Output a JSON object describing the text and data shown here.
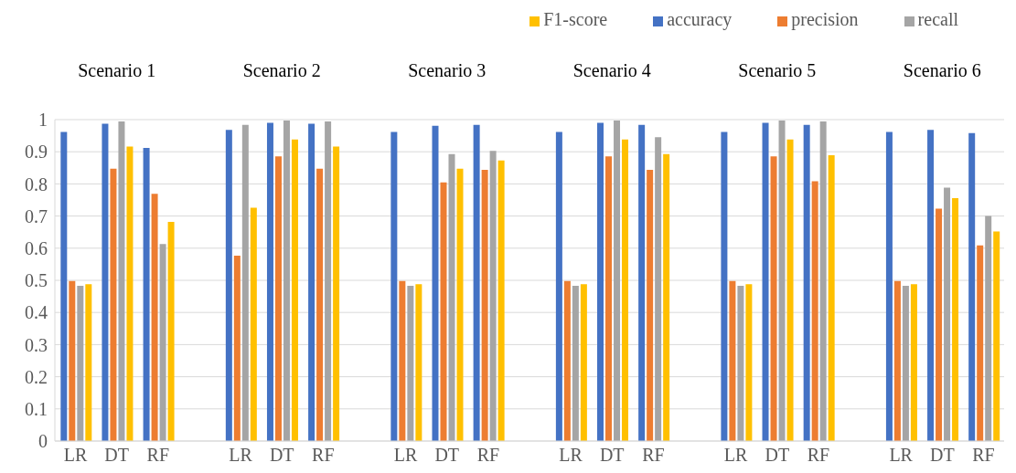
{
  "chart_data": {
    "type": "bar",
    "categories": [
      "LR",
      "DT",
      "RF",
      null,
      "LR",
      "DT",
      "RF",
      null,
      "LR",
      "DT",
      "RF",
      null,
      "LR",
      "DT",
      "RF",
      null,
      "LR",
      "DT",
      "RF",
      null,
      "LR",
      "DT",
      "RF"
    ],
    "series": [
      {
        "name": "accuracy",
        "color": "#4472c4",
        "values": [
          0.962,
          0.987,
          0.912,
          null,
          0.968,
          0.99,
          0.987,
          null,
          0.962,
          0.981,
          0.984,
          null,
          0.962,
          0.99,
          0.984,
          null,
          0.962,
          0.99,
          0.984,
          null,
          0.962,
          0.968,
          0.958
        ]
      },
      {
        "name": "precision",
        "color": "#ed7d31",
        "values": [
          0.498,
          0.847,
          0.769,
          null,
          0.577,
          0.886,
          0.847,
          null,
          0.498,
          0.805,
          0.844,
          null,
          0.498,
          0.886,
          0.844,
          null,
          0.498,
          0.886,
          0.808,
          null,
          0.498,
          0.723,
          0.609
        ]
      },
      {
        "name": "recall",
        "color": "#a5a5a5",
        "values": [
          0.483,
          0.994,
          0.613,
          null,
          0.984,
          0.997,
          0.994,
          null,
          0.483,
          0.893,
          0.903,
          null,
          0.483,
          0.997,
          0.945,
          null,
          0.483,
          0.997,
          0.994,
          null,
          0.483,
          0.788,
          0.7
        ]
      },
      {
        "name": "F1-score",
        "color": "#ffc000",
        "values": [
          0.488,
          0.916,
          0.682,
          null,
          0.726,
          0.938,
          0.916,
          null,
          0.488,
          0.847,
          0.873,
          null,
          0.488,
          0.938,
          0.893,
          null,
          0.488,
          0.938,
          0.889,
          null,
          0.488,
          0.756,
          0.652
        ]
      }
    ],
    "annotations": [
      "Scenario 1",
      "Scenario 2",
      "Scenario 3",
      "Scenario 4",
      "Scenario 5",
      "Scenario 6"
    ],
    "ylim": [
      0,
      1
    ],
    "yticks": [
      0,
      0.1,
      0.2,
      0.3,
      0.4,
      0.5,
      0.6,
      0.7,
      0.8,
      0.9,
      1
    ],
    "grid": "y",
    "legend": "top right"
  }
}
